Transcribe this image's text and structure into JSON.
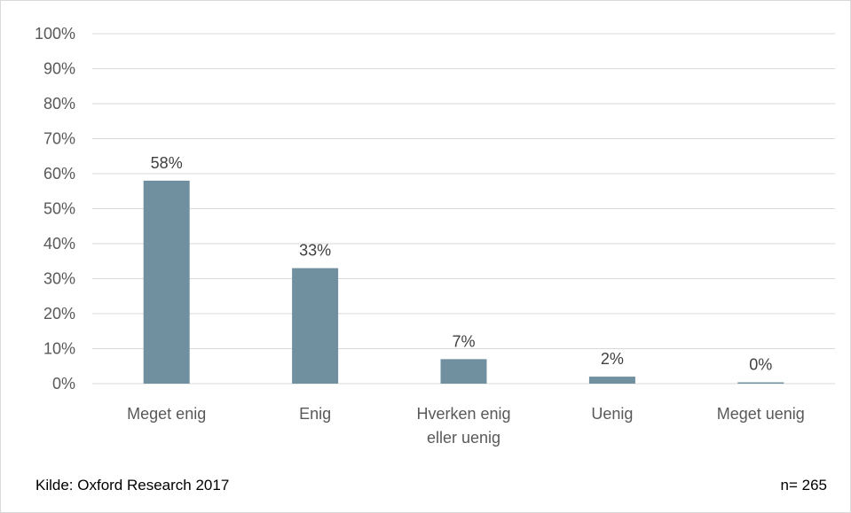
{
  "chart_data": {
    "type": "bar",
    "categories": [
      [
        "Meget enig"
      ],
      [
        "Enig"
      ],
      [
        "Hverken enig",
        "eller uenig"
      ],
      [
        "Uenig"
      ],
      [
        "Meget uenig"
      ]
    ],
    "values": [
      58,
      33,
      7,
      2,
      0
    ],
    "value_labels": [
      "58%",
      "33%",
      "7%",
      "2%",
      "0%"
    ],
    "yticks": [
      "0%",
      "10%",
      "20%",
      "30%",
      "40%",
      "50%",
      "60%",
      "70%",
      "80%",
      "90%",
      "100%"
    ],
    "ylim": [
      0,
      100
    ],
    "grid": true,
    "bar_color": "#71909f",
    "grid_color": "#d9d9d9"
  },
  "footer": {
    "source": "Kilde: Oxford Research 2017",
    "n": "n= 265"
  }
}
